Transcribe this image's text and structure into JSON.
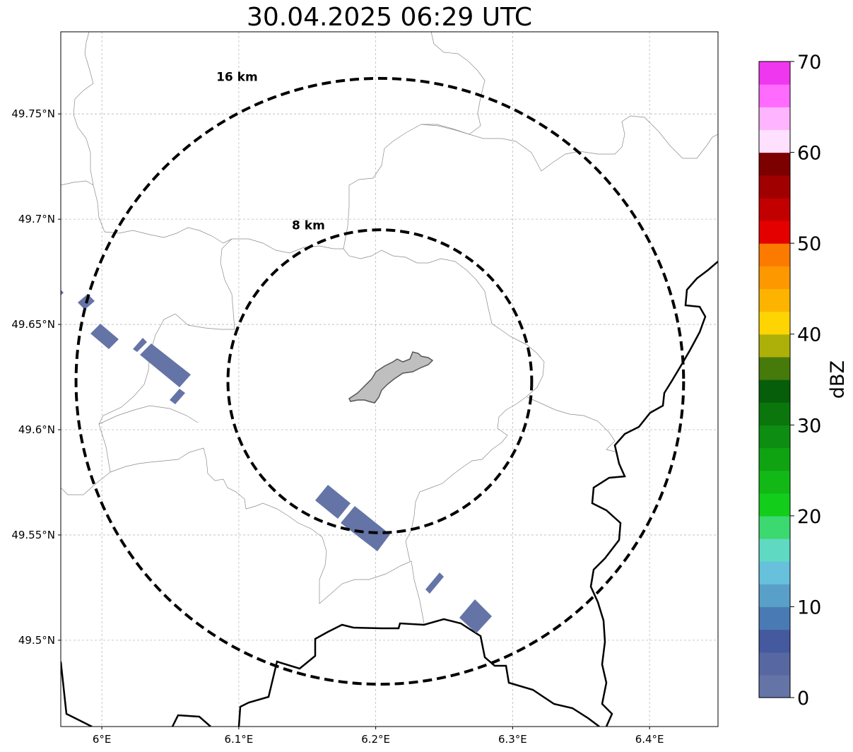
{
  "title": "30.04.2025 06:29 UTC",
  "map": {
    "lon_range": [
      5.97,
      6.45
    ],
    "lat_range": [
      49.459,
      49.789
    ],
    "lon_ticks": [
      {
        "value": 6.0,
        "label": "6°E"
      },
      {
        "value": 6.1,
        "label": "6.1°E"
      },
      {
        "value": 6.2,
        "label": "6.2°E"
      },
      {
        "value": 6.3,
        "label": "6.3°E"
      },
      {
        "value": 6.4,
        "label": "6.4°E"
      }
    ],
    "lat_ticks": [
      {
        "value": 49.5,
        "label": "49.5°N"
      },
      {
        "value": 49.55,
        "label": "49.55°N"
      },
      {
        "value": 49.6,
        "label": "49.6°N"
      },
      {
        "value": 49.65,
        "label": "49.65°N"
      },
      {
        "value": 49.7,
        "label": "49.7°N"
      },
      {
        "value": 49.75,
        "label": "49.75°N"
      }
    ],
    "gridlines": true,
    "center": {
      "lon": 6.203,
      "lat": 49.623
    },
    "rings": [
      {
        "radius_km": 8,
        "label": "8 km"
      },
      {
        "radius_km": 16,
        "label": "16 km"
      }
    ],
    "echoes_dbz": 2
  },
  "colorbar": {
    "label": "dBZ",
    "min": 0,
    "max": 70,
    "step": 2.5,
    "tick_labels": [
      "0",
      "10",
      "20",
      "30",
      "40",
      "50",
      "60",
      "70"
    ],
    "colors": [
      "#6574a6",
      "#5767a1",
      "#44599e",
      "#4a7ab4",
      "#58a0c8",
      "#67c0dc",
      "#60d9c3",
      "#3cd870",
      "#12cd1a",
      "#11b816",
      "#0fa312",
      "#0d8d11",
      "#0a760c",
      "#065e0a",
      "#467a0b",
      "#adb009",
      "#fed502",
      "#fdb400",
      "#fd9800",
      "#fd7a00",
      "#e50000",
      "#c20000",
      "#a00000",
      "#7c0000",
      "#ffe1ff",
      "#ffb4ff",
      "#ff6bff",
      "#f037f0"
    ]
  }
}
